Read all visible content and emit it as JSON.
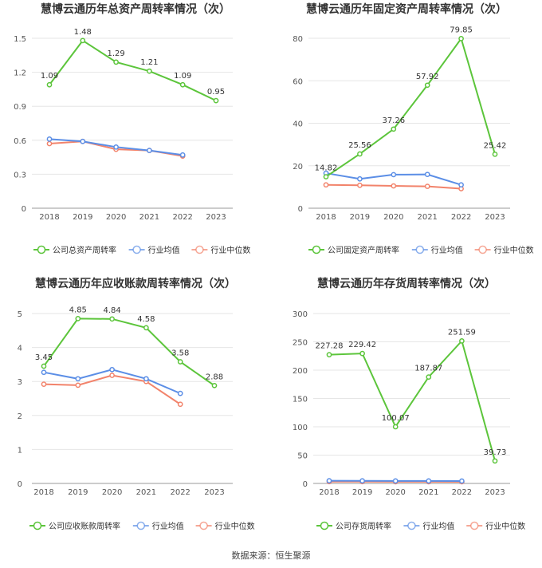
{
  "footer": "数据来源：恒生聚源",
  "chart_data": [
    {
      "type": "line",
      "title": "慧博云通历年总资产周转率情况（次）",
      "categories": [
        "2018",
        "2019",
        "2020",
        "2021",
        "2022",
        "2023"
      ],
      "ylim": [
        0,
        1.5
      ],
      "yticks": [
        "0",
        "0.3",
        "0.6",
        "0.9",
        "1.2",
        "1.5"
      ],
      "series": [
        {
          "name": "公司总资产周转率",
          "color": "#5cc53b",
          "values": [
            1.09,
            1.48,
            1.29,
            1.21,
            1.09,
            0.95
          ],
          "labels": [
            "1.09",
            "1.48",
            "1.29",
            "1.21",
            "1.09",
            "0.95"
          ]
        },
        {
          "name": "行业均值",
          "color": "#5b8ee6",
          "values": [
            0.61,
            0.59,
            0.54,
            0.51,
            0.47,
            null
          ]
        },
        {
          "name": "行业中位数",
          "color": "#f2836b",
          "values": [
            0.57,
            0.59,
            0.52,
            0.51,
            0.46,
            null
          ]
        }
      ],
      "legend": "bottom",
      "grid": true
    },
    {
      "type": "line",
      "title": "慧博云通历年固定资产周转率情况（次）",
      "categories": [
        "2018",
        "2019",
        "2020",
        "2021",
        "2022",
        "2023"
      ],
      "ylim": [
        0,
        80
      ],
      "yticks": [
        "0",
        "20",
        "40",
        "60",
        "80"
      ],
      "series": [
        {
          "name": "公司固定资产周转率",
          "color": "#5cc53b",
          "values": [
            14.82,
            25.56,
            37.26,
            57.92,
            79.85,
            25.42
          ],
          "labels": [
            "14.82",
            "25.56",
            "37.26",
            "57.92",
            "79.85",
            "25.42"
          ]
        },
        {
          "name": "行业均值",
          "color": "#5b8ee6",
          "values": [
            16.5,
            13.8,
            15.8,
            15.9,
            11.0,
            null
          ]
        },
        {
          "name": "行业中位数",
          "color": "#f2836b",
          "values": [
            11.0,
            10.8,
            10.5,
            10.3,
            9.2,
            null
          ]
        }
      ],
      "legend": "bottom",
      "grid": true
    },
    {
      "type": "line",
      "title": "慧博云通历年应收账款周转率情况（次）",
      "categories": [
        "2018",
        "2019",
        "2020",
        "2021",
        "2022",
        "2023"
      ],
      "ylim": [
        0,
        5
      ],
      "yticks": [
        "0",
        "1",
        "2",
        "3",
        "4",
        "5"
      ],
      "series": [
        {
          "name": "公司应收账款周转率",
          "color": "#5cc53b",
          "values": [
            3.45,
            4.85,
            4.84,
            4.58,
            3.58,
            2.88
          ],
          "labels": [
            "3.45",
            "4.85",
            "4.84",
            "4.58",
            "3.58",
            "2.88"
          ]
        },
        {
          "name": "行业均值",
          "color": "#5b8ee6",
          "values": [
            3.27,
            3.08,
            3.35,
            3.08,
            2.65,
            null
          ]
        },
        {
          "name": "行业中位数",
          "color": "#f2836b",
          "values": [
            2.92,
            2.89,
            3.18,
            3.0,
            2.33,
            null
          ]
        }
      ],
      "legend": "bottom",
      "grid": true
    },
    {
      "type": "line",
      "title": "慧博云通历年存货周转率情况（次）",
      "categories": [
        "2018",
        "2019",
        "2020",
        "2021",
        "2022",
        "2023"
      ],
      "ylim": [
        0,
        300
      ],
      "yticks": [
        "0",
        "50",
        "100",
        "150",
        "200",
        "250",
        "300"
      ],
      "series": [
        {
          "name": "公司存货周转率",
          "color": "#5cc53b",
          "values": [
            227.28,
            229.42,
            100.07,
            187.87,
            251.59,
            39.73
          ],
          "labels": [
            "227.28",
            "229.42",
            "100.07",
            "187.87",
            "251.59",
            "39.73"
          ]
        },
        {
          "name": "行业均值",
          "color": "#5b8ee6",
          "values": [
            4.8,
            4.6,
            4.4,
            4.4,
            4.3,
            null
          ]
        },
        {
          "name": "行业中位数",
          "color": "#f2836b",
          "values": [
            3.2,
            3.1,
            3.0,
            3.0,
            2.9,
            null
          ]
        }
      ],
      "legend": "bottom",
      "grid": true
    }
  ]
}
